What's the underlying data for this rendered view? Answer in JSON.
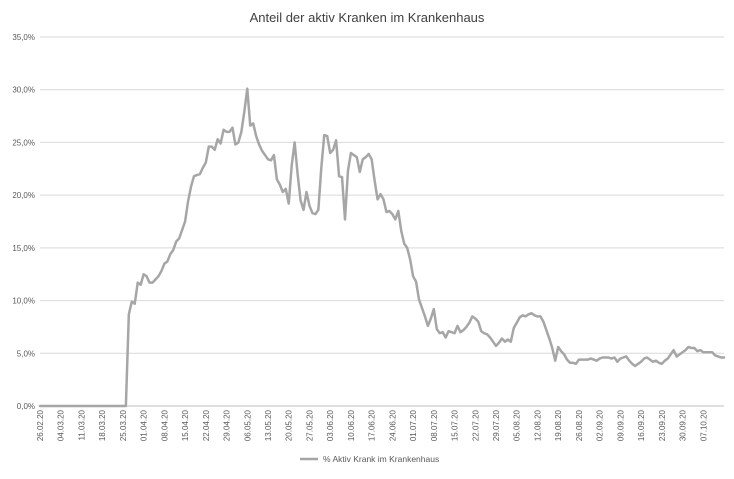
{
  "chart_data": {
    "type": "line",
    "title": "Anteil der aktiv Kranken im Krankenhaus",
    "xlabel": "",
    "ylabel": "",
    "ylim": [
      0,
      35
    ],
    "y_ticks": [
      "0,0%",
      "5,0%",
      "10,0%",
      "15,0%",
      "20,0%",
      "25,0%",
      "30,0%",
      "35,0%"
    ],
    "x_tick_labels": [
      "26.02.20",
      "04.03.20",
      "11.03.20",
      "18.03.20",
      "25.03.20",
      "01.04.20",
      "08.04.20",
      "15.04.20",
      "22.04.20",
      "29.04.20",
      "06.05.20",
      "13.05.20",
      "20.05.20",
      "27.05.20",
      "03.06.20",
      "10.06.20",
      "17.06.20",
      "24.06.20",
      "01.07.20",
      "08.07.20",
      "15.07.20",
      "22.07.20",
      "29.07.20",
      "05.08.20",
      "12.08.20",
      "19.08.20",
      "26.08.20",
      "02.09.20",
      "09.09.20",
      "16.09.20",
      "23.09.20",
      "30.09.20",
      "07.10.20"
    ],
    "grid": true,
    "legend_position": "bottom",
    "colors": {
      "line": "#a6a6a6",
      "grid": "#d9d9d9",
      "text": "#595959"
    },
    "series": [
      {
        "name": "% Aktiv Krank im Krankenhaus",
        "values": [
          0,
          0,
          0,
          0,
          0,
          0,
          0,
          0,
          0,
          0,
          0,
          0,
          0,
          0,
          0,
          0,
          0,
          0,
          0,
          0,
          0,
          0,
          0,
          0,
          0,
          0,
          0,
          0,
          0,
          0,
          8.7,
          9.9,
          9.7,
          11.7,
          11.5,
          12.5,
          12.3,
          11.7,
          11.7,
          12.0,
          12.3,
          12.8,
          13.5,
          13.7,
          14.4,
          14.8,
          15.6,
          15.9,
          16.7,
          17.5,
          19.4,
          20.8,
          21.8,
          21.9,
          22.0,
          22.6,
          23.1,
          24.6,
          24.6,
          24.3,
          25.3,
          24.9,
          26.2,
          26.0,
          26.0,
          26.4,
          24.8,
          25.0,
          26.0,
          27.9,
          30.1,
          26.6,
          26.8,
          25.6,
          24.8,
          24.2,
          23.8,
          23.4,
          23.3,
          23.8,
          21.5,
          21.0,
          20.3,
          20.6,
          19.2,
          22.8,
          25.0,
          22.0,
          19.5,
          18.6,
          20.3,
          19.0,
          18.3,
          18.2,
          18.6,
          22.6,
          25.7,
          25.6,
          24.0,
          24.3,
          25.2,
          21.8,
          21.7,
          17.7,
          22.3,
          24.0,
          23.8,
          23.6,
          22.2,
          23.4,
          23.6,
          23.9,
          23.4,
          21.4,
          19.6,
          20.1,
          19.6,
          18.4,
          18.5,
          18.2,
          17.7,
          18.5,
          16.6,
          15.4,
          15.0,
          13.9,
          12.3,
          11.8,
          10.1,
          9.3,
          8.5,
          7.6,
          8.3,
          9.2,
          7.3,
          6.9,
          7.0,
          6.5,
          7.1,
          7.0,
          6.9,
          7.6,
          7.0,
          7.2,
          7.5,
          7.9,
          8.5,
          8.3,
          8.0,
          7.1,
          6.9,
          6.8,
          6.5,
          6.1,
          5.7,
          6.0,
          6.4,
          6.1,
          6.3,
          6.1,
          7.4,
          7.9,
          8.4,
          8.6,
          8.5,
          8.7,
          8.8,
          8.6,
          8.5,
          8.5,
          8.0,
          7.2,
          6.4,
          5.5,
          4.3,
          5.6,
          5.2,
          4.9,
          4.4,
          4.1,
          4.1,
          4.0,
          4.4,
          4.4,
          4.4,
          4.4,
          4.5,
          4.4,
          4.3,
          4.5,
          4.6,
          4.6,
          4.6,
          4.5,
          4.6,
          4.2,
          4.5,
          4.6,
          4.7,
          4.3,
          4.0,
          3.8,
          4.0,
          4.2,
          4.5,
          4.6,
          4.4,
          4.2,
          4.3,
          4.1,
          4.0,
          4.3,
          4.5,
          4.9,
          5.3,
          4.7,
          4.9,
          5.1,
          5.3,
          5.6,
          5.5,
          5.5,
          5.2,
          5.3,
          5.1,
          5.1,
          5.1,
          5.1,
          4.8,
          4.7,
          4.6,
          4.6
        ]
      }
    ]
  }
}
